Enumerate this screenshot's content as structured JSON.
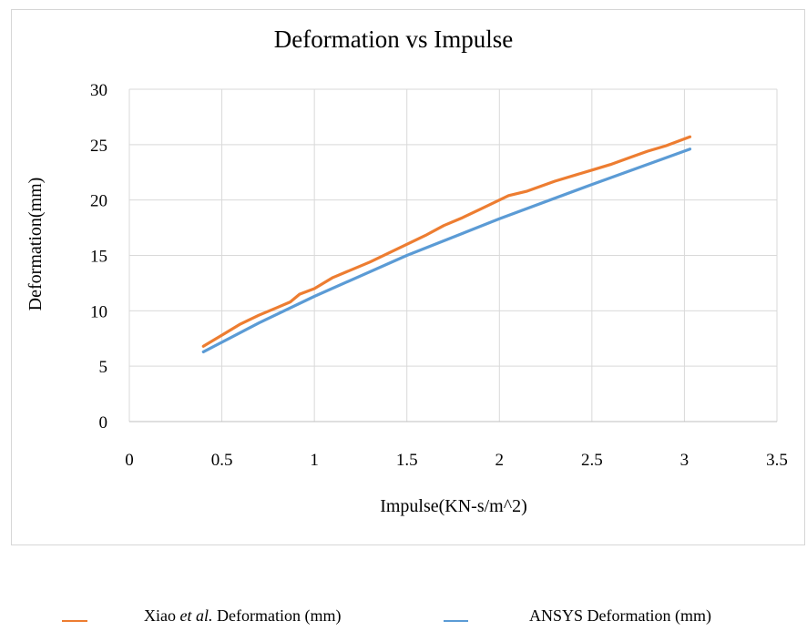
{
  "chart_data": {
    "type": "line",
    "title": "Deformation vs Impulse",
    "xlabel": "Impulse(KN-s/m^2)",
    "ylabel": "Deformation(mm)",
    "xlim": [
      0,
      3.5
    ],
    "ylim": [
      0,
      30
    ],
    "x_ticks": [
      "0",
      "0.5",
      "1",
      "1.5",
      "2",
      "2.5",
      "3",
      "3.5"
    ],
    "y_ticks": [
      "0",
      "5",
      "10",
      "15",
      "20",
      "25",
      "30"
    ],
    "grid": true,
    "legend_position": "bottom",
    "series": [
      {
        "name_prefix": "Xiao ",
        "name_italic": "et al.",
        "name_suffix": " Deformation (mm)",
        "color": "#ED7D31",
        "x": [
          0.4,
          0.5,
          0.6,
          0.7,
          0.8,
          0.87,
          0.92,
          1.0,
          1.1,
          1.2,
          1.3,
          1.4,
          1.5,
          1.6,
          1.7,
          1.8,
          1.9,
          2.0,
          2.05,
          2.15,
          2.3,
          2.5,
          2.6,
          2.7,
          2.8,
          2.9,
          3.03
        ],
        "y": [
          6.8,
          7.8,
          8.8,
          9.6,
          10.3,
          10.8,
          11.5,
          12.0,
          13.0,
          13.7,
          14.4,
          15.2,
          16.0,
          16.8,
          17.7,
          18.4,
          19.2,
          20.0,
          20.4,
          20.8,
          21.7,
          22.7,
          23.2,
          23.8,
          24.4,
          24.9,
          25.7
        ]
      },
      {
        "name": "ANSYS Deformation (mm)",
        "color": "#5B9BD5",
        "x": [
          0.4,
          0.7,
          1.0,
          1.5,
          2.0,
          2.5,
          3.03
        ],
        "y": [
          6.3,
          8.9,
          11.3,
          15.0,
          18.3,
          21.4,
          24.6
        ]
      }
    ]
  }
}
